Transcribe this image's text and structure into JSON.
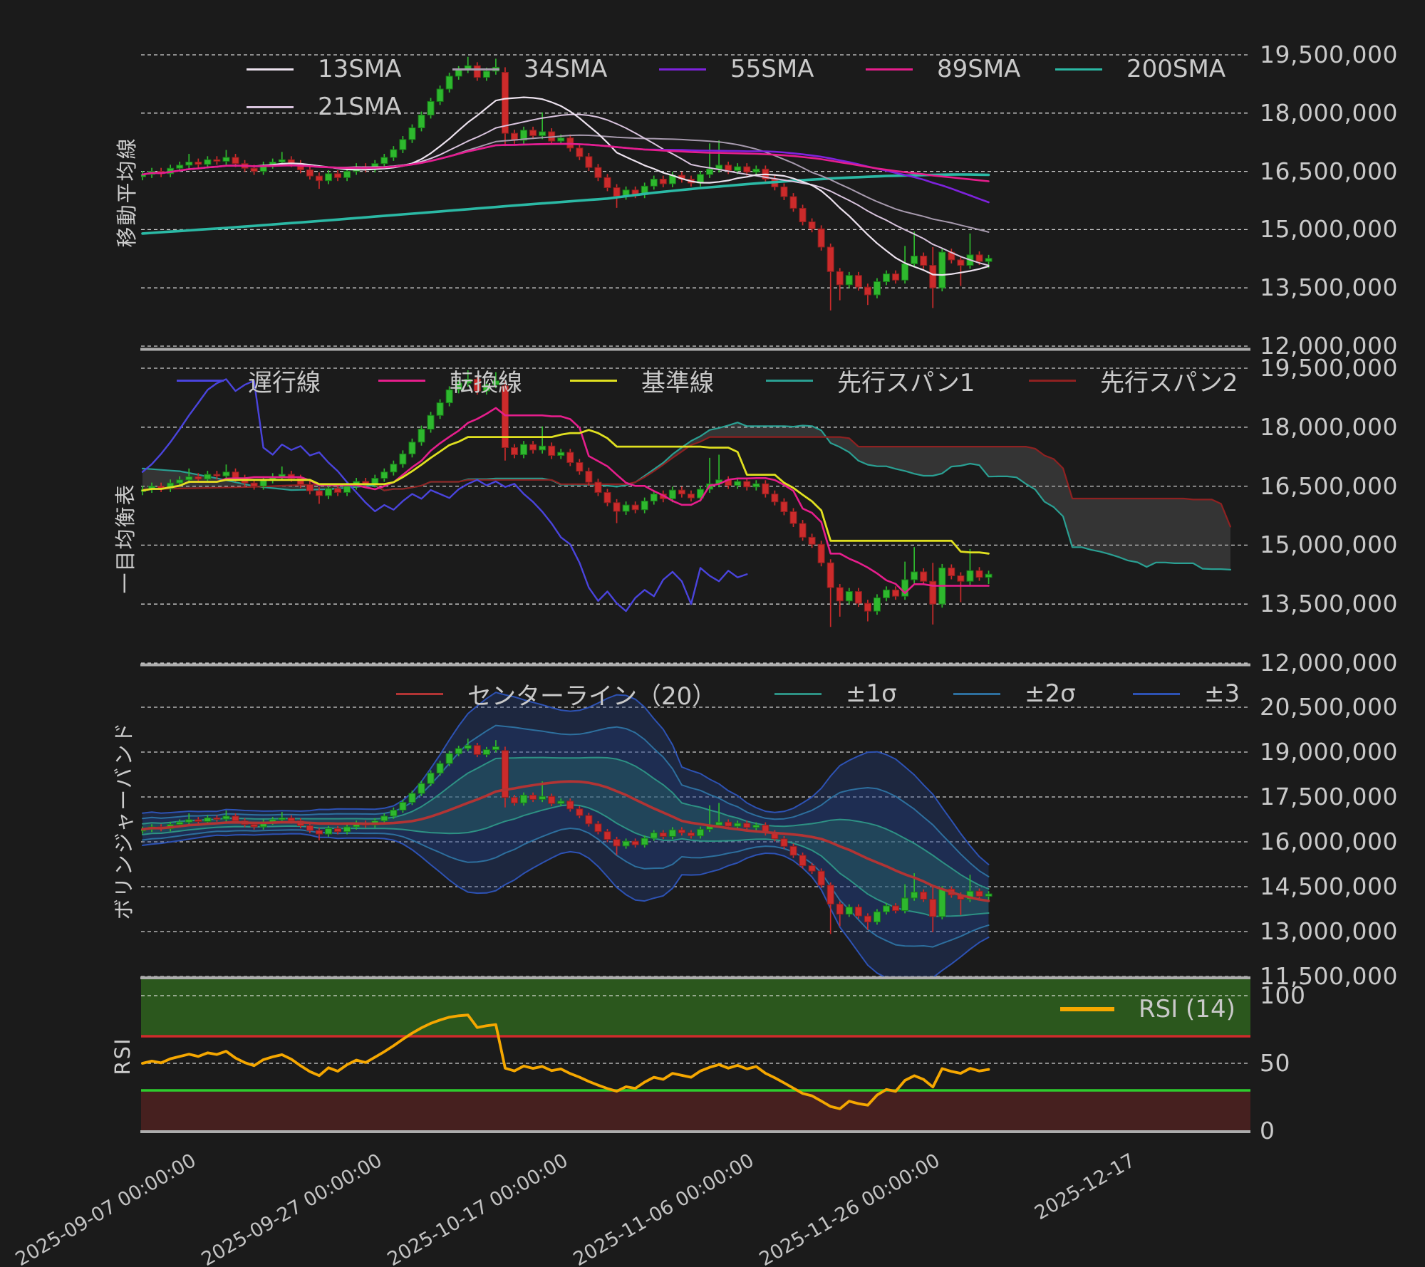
{
  "app": {
    "background": "#1b1b1b",
    "grid_color": "#f0f0f0",
    "divider_color": "#adadad",
    "tick_text_color": "#c9c9c9"
  },
  "chart_data": {
    "type": "candlestick-multi-panel",
    "unit": "JPY (values stored in millions)",
    "x_ticks": [
      {
        "label": "2025-09-07 00:00:00",
        "index": 5
      },
      {
        "label": "2025-09-27 00:00:00",
        "index": 25
      },
      {
        "label": "2025-10-17 00:00:00",
        "index": 45
      },
      {
        "label": "2025-11-06 00:00:00",
        "index": 65
      },
      {
        "label": "2025-11-26 00:00:00",
        "index": 85
      },
      {
        "label": "2025-12-17",
        "index": 106
      }
    ],
    "candles": {
      "open_m": [
        16.36,
        16.42,
        16.5,
        16.44,
        16.58,
        16.66,
        16.74,
        16.68,
        16.8,
        16.76,
        16.86,
        16.7,
        16.58,
        16.5,
        16.66,
        16.74,
        16.8,
        16.7,
        16.54,
        16.38,
        16.26,
        16.44,
        16.34,
        16.5,
        16.62,
        16.56,
        16.7,
        16.86,
        17.06,
        17.32,
        17.62,
        17.95,
        18.3,
        18.62,
        18.95,
        19.12,
        19.22,
        18.92,
        19.08,
        19.05,
        17.48,
        17.3,
        17.56,
        17.42,
        17.52,
        17.28,
        17.36,
        17.1,
        16.88,
        16.6,
        16.34,
        16.08,
        15.86,
        16.02,
        15.9,
        16.12,
        16.3,
        16.18,
        16.4,
        16.3,
        16.2,
        16.42,
        16.56,
        16.66,
        16.52,
        16.62,
        16.48,
        16.56,
        16.3,
        16.1,
        15.85,
        15.55,
        15.2,
        15.02,
        14.55,
        13.92,
        13.58,
        13.82,
        13.52,
        13.32,
        13.66,
        13.86,
        13.7,
        14.12,
        14.32,
        14.08,
        13.5,
        14.42,
        14.22,
        14.08,
        14.35,
        14.18
      ],
      "high_m": [
        16.51,
        16.59,
        16.59,
        16.67,
        16.75,
        16.95,
        16.83,
        16.89,
        16.89,
        17.05,
        16.95,
        16.79,
        16.67,
        16.75,
        16.83,
        17.0,
        16.89,
        16.79,
        16.63,
        16.47,
        16.53,
        16.53,
        16.59,
        16.71,
        16.71,
        16.79,
        16.95,
        17.15,
        17.41,
        17.71,
        18.04,
        18.39,
        18.71,
        19.04,
        19.21,
        19.45,
        19.31,
        19.17,
        19.4,
        19.18,
        17.57,
        17.65,
        17.65,
        18.02,
        17.61,
        17.45,
        17.45,
        17.19,
        16.97,
        16.69,
        16.43,
        16.17,
        16.11,
        16.11,
        16.21,
        16.39,
        16.39,
        16.49,
        16.49,
        16.39,
        16.51,
        17.22,
        17.3,
        16.75,
        16.71,
        16.71,
        16.65,
        16.65,
        16.39,
        16.19,
        15.94,
        15.64,
        15.29,
        15.11,
        14.64,
        14.01,
        13.91,
        13.91,
        13.61,
        13.75,
        13.95,
        13.95,
        14.58,
        14.95,
        14.41,
        14.55,
        14.52,
        14.51,
        14.31,
        14.9,
        14.44,
        14.35
      ],
      "low_m": [
        16.27,
        16.33,
        16.35,
        16.35,
        16.49,
        16.57,
        16.59,
        16.59,
        16.67,
        16.67,
        16.61,
        16.49,
        16.41,
        16.41,
        16.57,
        16.65,
        16.61,
        16.45,
        16.29,
        16.05,
        16.17,
        16.25,
        16.25,
        16.41,
        16.47,
        16.47,
        16.61,
        16.77,
        16.97,
        17.23,
        17.53,
        17.86,
        18.21,
        18.53,
        18.86,
        19.03,
        18.83,
        18.83,
        18.99,
        17.15,
        17.21,
        17.21,
        17.33,
        17.33,
        17.19,
        17.19,
        17.01,
        16.79,
        16.51,
        16.25,
        15.99,
        15.56,
        15.77,
        15.81,
        15.81,
        16.03,
        16.09,
        16.09,
        16.21,
        16.11,
        16.11,
        16.33,
        16.47,
        16.43,
        16.43,
        16.39,
        16.39,
        16.21,
        16.01,
        15.76,
        15.46,
        15.11,
        14.93,
        14.46,
        12.92,
        13.18,
        13.49,
        13.43,
        13.06,
        13.23,
        13.57,
        13.61,
        13.61,
        14.03,
        13.99,
        12.98,
        13.41,
        14.13,
        13.55,
        13.99,
        14.09,
        14.01
      ],
      "close_m": [
        16.42,
        16.5,
        16.44,
        16.58,
        16.66,
        16.74,
        16.68,
        16.8,
        16.76,
        16.86,
        16.7,
        16.58,
        16.5,
        16.66,
        16.74,
        16.8,
        16.7,
        16.54,
        16.38,
        16.26,
        16.44,
        16.34,
        16.5,
        16.62,
        16.56,
        16.7,
        16.86,
        17.06,
        17.32,
        17.62,
        17.95,
        18.3,
        18.62,
        18.95,
        19.12,
        19.22,
        18.92,
        19.08,
        19.18,
        17.48,
        17.3,
        17.56,
        17.42,
        17.52,
        17.28,
        17.36,
        17.1,
        16.88,
        16.6,
        16.34,
        16.08,
        15.86,
        16.02,
        15.9,
        16.12,
        16.3,
        16.18,
        16.4,
        16.3,
        16.2,
        16.42,
        16.56,
        16.66,
        16.52,
        16.62,
        16.48,
        16.56,
        16.3,
        16.1,
        15.85,
        15.55,
        15.2,
        15.02,
        14.55,
        13.92,
        13.58,
        13.82,
        13.52,
        13.32,
        13.66,
        13.86,
        13.7,
        14.12,
        14.32,
        14.08,
        13.5,
        14.42,
        14.22,
        14.08,
        14.35,
        14.18,
        14.26
      ],
      "up_color": "#2eb82e",
      "up_border": "#177a17",
      "down_color": "#cc2b2b",
      "down_border": "#8a1f1f"
    },
    "panels": [
      {
        "name": "移動平均線",
        "y_ticks": [
          {
            "label": "19,500,000",
            "value": 19.5
          },
          {
            "label": "18,000,000",
            "value": 18.0
          },
          {
            "label": "16,500,000",
            "value": 16.5
          },
          {
            "label": "15,000,000",
            "value": 15.0
          },
          {
            "label": "13,500,000",
            "value": 13.5
          },
          {
            "label": "12,000,000",
            "value": 12.0
          }
        ],
        "legend": [
          {
            "label": "13SMA",
            "color": "#ece2ee",
            "period": 13
          },
          {
            "label": "34SMA",
            "color": "#a79aae",
            "period": 34
          },
          {
            "label": "55SMA",
            "color": "#7e22dd",
            "period": 55
          },
          {
            "label": "89SMA",
            "color": "#e61e8c",
            "period": 89
          },
          {
            "label": "200SMA",
            "color": "#2bb9a5",
            "period": 200
          },
          {
            "label": "21SMA",
            "color": "#d9c4de",
            "period": 21
          }
        ],
        "sma200_anchor_points_m": [
          [
            0,
            14.9
          ],
          [
            10,
            15.06
          ],
          [
            20,
            15.24
          ],
          [
            30,
            15.43
          ],
          [
            40,
            15.62
          ],
          [
            50,
            15.8
          ],
          [
            55,
            15.95
          ],
          [
            60,
            16.07
          ],
          [
            65,
            16.17
          ],
          [
            70,
            16.26
          ],
          [
            75,
            16.33
          ],
          [
            80,
            16.38
          ],
          [
            85,
            16.41
          ],
          [
            88,
            16.42
          ],
          [
            91,
            16.41
          ]
        ]
      },
      {
        "name": "一目均衡表",
        "y_ticks": [
          {
            "label": "19,500,000",
            "value": 19.5
          },
          {
            "label": "18,000,000",
            "value": 18.0
          },
          {
            "label": "16,500,000",
            "value": 16.5
          },
          {
            "label": "15,000,000",
            "value": 15.0
          },
          {
            "label": "13,500,000",
            "value": 13.5
          },
          {
            "label": "12,000,000",
            "value": 12.0
          }
        ],
        "legend": [
          {
            "label": "遅行線",
            "color": "#4a44dd"
          },
          {
            "label": "転換線",
            "color": "#e61e8c"
          },
          {
            "label": "基準線",
            "color": "#e0e020"
          },
          {
            "label": "先行スパン1",
            "color": "#2aa093"
          },
          {
            "label": "先行スパン2",
            "color": "#8f2121"
          }
        ],
        "cloud_fill": "rgba(140,140,140,0.22)",
        "senkou_prefix_m": [
          [
            0,
            16.95,
            16.42
          ],
          [
            4,
            16.88,
            16.44
          ],
          [
            8,
            16.7,
            16.46
          ],
          [
            12,
            16.5,
            16.48
          ],
          [
            16,
            16.4,
            16.52
          ],
          [
            20,
            16.42,
            16.55
          ],
          [
            25,
            16.52,
            16.55
          ]
        ]
      },
      {
        "name": "ボリンジャーバンド",
        "y_ticks": [
          {
            "label": "20,500,000",
            "value": 20.5
          },
          {
            "label": "19,000,000",
            "value": 19.0
          },
          {
            "label": "17,500,000",
            "value": 17.5
          },
          {
            "label": "16,000,000",
            "value": 16.0
          },
          {
            "label": "14,500,000",
            "value": 14.5
          },
          {
            "label": "13,000,000",
            "value": 13.0
          },
          {
            "label": "11,500,000",
            "value": 11.5
          }
        ],
        "legend": [
          {
            "label": "センターライン（20）",
            "color": "#b23434"
          },
          {
            "label": "±1σ",
            "color": "#2d9184"
          },
          {
            "label": "±2σ",
            "color": "#2d6f9e"
          },
          {
            "label": "±3",
            "color": "#2d52b4"
          }
        ],
        "fill_outer": "rgba(35,70,150,0.30)",
        "fill_mid": "rgba(35,70,150,0.22)",
        "fill_inner": "rgba(40,115,105,0.35)"
      },
      {
        "name": "RSI",
        "y_ticks": [
          {
            "label": "100",
            "value": 100
          },
          {
            "label": "50",
            "value": 50
          },
          {
            "label": "0",
            "value": 0
          }
        ],
        "legend": [
          {
            "label": "RSI (14)",
            "color": "#f5a700"
          }
        ],
        "overbought_zone_color": "#2b571d",
        "oversold_zone_color": "#46201f",
        "overbought_line": {
          "value": 70,
          "color": "#cf2b2b"
        },
        "oversold_line": {
          "value": 30,
          "color": "#2ecc2e"
        }
      }
    ]
  }
}
